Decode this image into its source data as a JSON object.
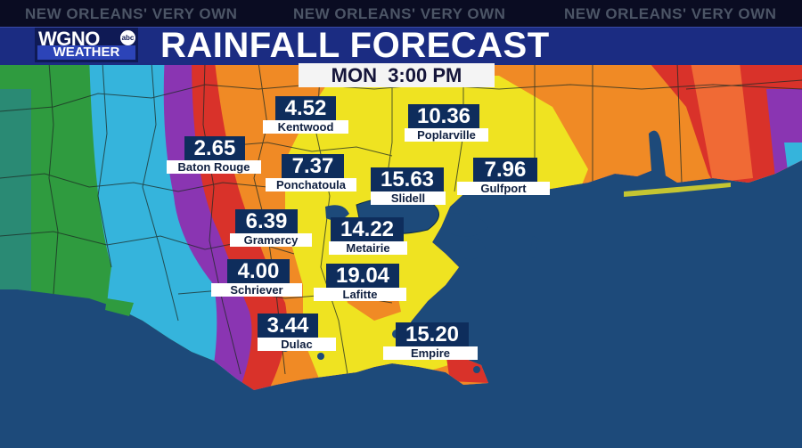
{
  "header": {
    "taglines": [
      "NEW ORLEANS' VERY OWN",
      "NEW ORLEANS' VERY OWN",
      "NEW ORLEANS' VERY OWN"
    ],
    "title": "RAINFALL FORECAST",
    "timestamp": "MON  3:00 PM"
  },
  "logo": {
    "station": "WGNO",
    "network": "abc",
    "subtitle": "WEATHER"
  },
  "stations": [
    {
      "name": "Kentwood",
      "value": "4.52"
    },
    {
      "name": "Poplarville",
      "value": "10.36"
    },
    {
      "name": "Baton Rouge",
      "value": "2.65"
    },
    {
      "name": "Ponchatoula",
      "value": "7.37"
    },
    {
      "name": "Slidell",
      "value": "15.63"
    },
    {
      "name": "Gulfport",
      "value": "7.96"
    },
    {
      "name": "Gramercy",
      "value": "6.39"
    },
    {
      "name": "Metairie",
      "value": "14.22"
    },
    {
      "name": "Schriever",
      "value": "4.00"
    },
    {
      "name": "Lafitte",
      "value": "19.04"
    },
    {
      "name": "Dulac",
      "value": "3.44"
    },
    {
      "name": "Empire",
      "value": "15.20"
    }
  ],
  "colors": {
    "water": "#1d4a7a",
    "green": "#2f9b3f",
    "cyan": "#35b4dc",
    "purple": "#8a35b2",
    "red": "#d9322a",
    "orange": "#f08a25",
    "yellow": "#efe321",
    "title_bar": "#1b2c82",
    "value_box": "#0e2d5c"
  }
}
